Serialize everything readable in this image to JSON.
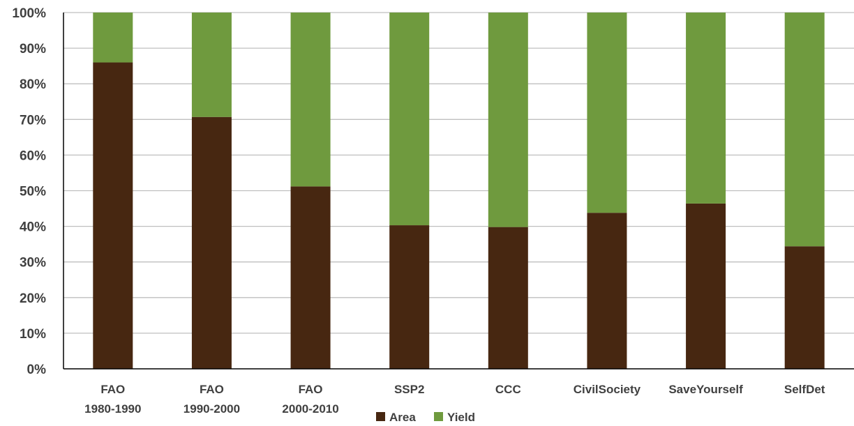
{
  "chart_data": {
    "type": "bar",
    "stacked": true,
    "categories": [
      [
        "FAO",
        "1980-1990"
      ],
      [
        "FAO",
        "1990-2000"
      ],
      [
        "FAO",
        "2000-2010"
      ],
      [
        "SSP2"
      ],
      [
        "CCC"
      ],
      [
        "CivilSociety"
      ],
      [
        "SaveYourself"
      ],
      [
        "SelfDet"
      ]
    ],
    "series": [
      {
        "name": "Area",
        "color": "#472711",
        "values": [
          86,
          70.7,
          51.2,
          40.3,
          39.8,
          43.8,
          46.4,
          34.4
        ]
      },
      {
        "name": "Yield",
        "color": "#6f9a3e",
        "values": [
          14,
          29.3,
          48.8,
          59.7,
          60.2,
          56.2,
          53.6,
          65.6
        ]
      }
    ],
    "yticks": [
      "0%",
      "10%",
      "20%",
      "30%",
      "40%",
      "50%",
      "60%",
      "70%",
      "80%",
      "90%",
      "100%"
    ],
    "ylim": [
      0,
      100
    ],
    "grid": true,
    "legend": "bottom-center",
    "title": "",
    "xlabel": "",
    "ylabel": ""
  }
}
